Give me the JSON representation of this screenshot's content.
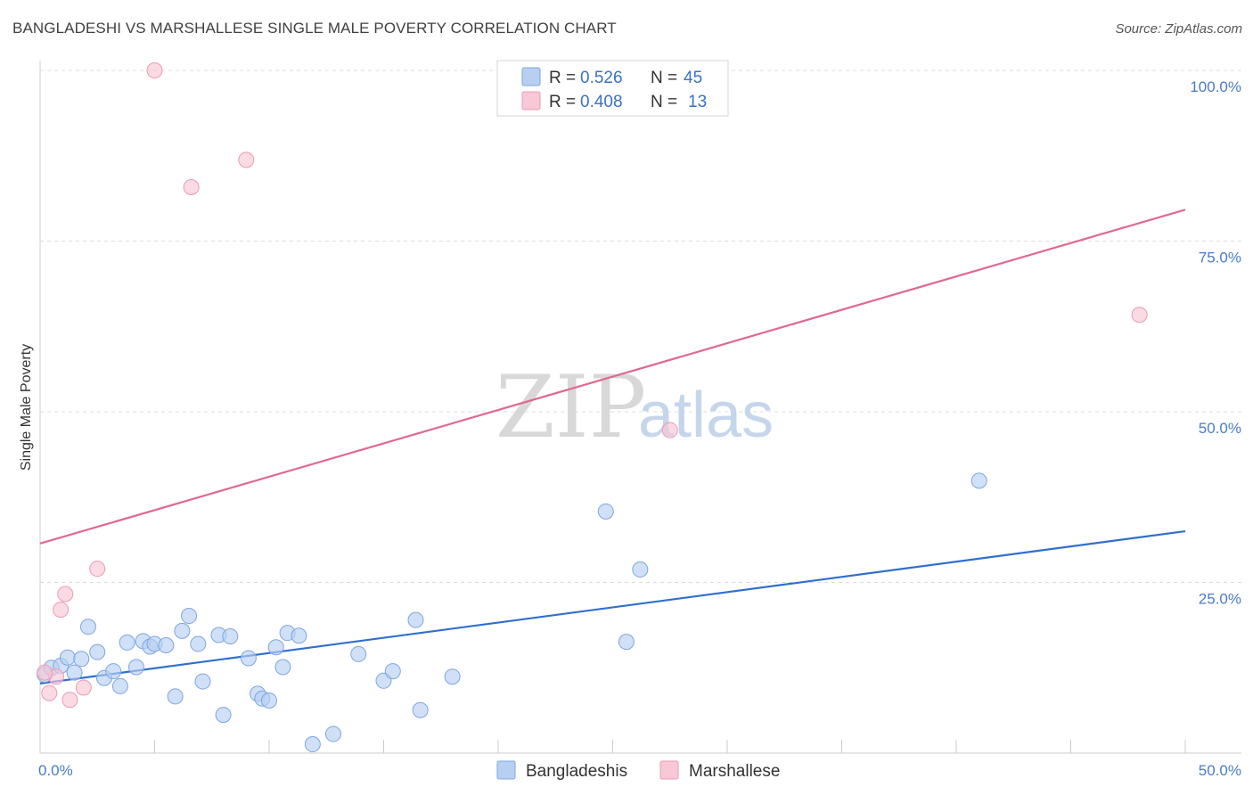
{
  "title": "BANGLADESHI VS MARSHALLESE SINGLE MALE POVERTY CORRELATION CHART",
  "source": "Source: ZipAtlas.com",
  "watermark": {
    "zip": "ZIP",
    "atlas": "atlas"
  },
  "colors": {
    "blue_fill": "#b7d0f2",
    "blue_stroke": "#7ea6df",
    "blue_line": "#2f6fce",
    "pink_fill": "#f8c8d6",
    "pink_stroke": "#ec9ab4",
    "pink_line": "#e06890",
    "grid": "#dcdcdc",
    "axis_text": "#4a7cc4"
  },
  "legend": {
    "r_label": "R =",
    "n_label": "N =",
    "rows": [
      {
        "r": "0.526",
        "n": "45"
      },
      {
        "r": "0.408",
        "n": "13"
      }
    ]
  },
  "chart_data": {
    "type": "scatter",
    "title": "BANGLADESHI VS MARSHALLESE SINGLE MALE POVERTY CORRELATION CHART",
    "xlabel": "",
    "ylabel": "Single Male Poverty",
    "xlim": [
      0,
      50
    ],
    "ylim": [
      0,
      100
    ],
    "x_tick_labels": [
      "0.0%",
      "50.0%"
    ],
    "y_tick_labels": [
      "100.0%",
      "75.0%",
      "50.0%",
      "25.0%"
    ],
    "y_ticks": [
      100,
      75,
      50,
      25
    ],
    "grid": true,
    "legend_position": "top-center",
    "series": [
      {
        "name": "Bangladeshis",
        "color": "#b7d0f2",
        "points": [
          [
            0.2,
            11.5
          ],
          [
            0.5,
            12.5
          ],
          [
            0.9,
            12.8
          ],
          [
            1.2,
            14.0
          ],
          [
            1.5,
            11.8
          ],
          [
            1.8,
            13.8
          ],
          [
            2.1,
            18.5
          ],
          [
            2.5,
            14.8
          ],
          [
            2.8,
            11.0
          ],
          [
            3.2,
            12.0
          ],
          [
            3.5,
            9.8
          ],
          [
            3.8,
            16.2
          ],
          [
            4.2,
            12.6
          ],
          [
            4.5,
            16.4
          ],
          [
            4.8,
            15.6
          ],
          [
            5.0,
            16.0
          ],
          [
            5.5,
            15.8
          ],
          [
            5.9,
            8.3
          ],
          [
            6.2,
            17.9
          ],
          [
            6.5,
            20.1
          ],
          [
            6.9,
            16.0
          ],
          [
            7.1,
            10.5
          ],
          [
            7.8,
            17.3
          ],
          [
            8.0,
            5.6
          ],
          [
            8.3,
            17.1
          ],
          [
            9.1,
            13.9
          ],
          [
            9.5,
            8.7
          ],
          [
            9.7,
            8.0
          ],
          [
            10.0,
            7.7
          ],
          [
            10.3,
            15.5
          ],
          [
            10.6,
            12.6
          ],
          [
            10.8,
            17.6
          ],
          [
            11.3,
            17.2
          ],
          [
            11.9,
            1.3
          ],
          [
            12.8,
            2.8
          ],
          [
            13.9,
            14.5
          ],
          [
            15.0,
            10.6
          ],
          [
            15.4,
            12.0
          ],
          [
            16.4,
            19.5
          ],
          [
            16.6,
            6.3
          ],
          [
            18.0,
            11.2
          ],
          [
            24.7,
            35.4
          ],
          [
            25.6,
            16.3
          ],
          [
            26.2,
            26.9
          ],
          [
            41.0,
            39.9
          ]
        ],
        "trend": {
          "x": [
            0,
            50
          ],
          "y": [
            10.2,
            32.5
          ]
        }
      },
      {
        "name": "Marshallese",
        "color": "#f8c8d6",
        "points": [
          [
            0.4,
            8.8
          ],
          [
            0.7,
            11.2
          ],
          [
            0.9,
            21.0
          ],
          [
            1.1,
            23.3
          ],
          [
            1.3,
            7.8
          ],
          [
            1.9,
            9.6
          ],
          [
            2.5,
            27.0
          ],
          [
            5.0,
            100.0
          ],
          [
            6.6,
            82.9
          ],
          [
            9.0,
            86.9
          ],
          [
            27.5,
            47.3
          ],
          [
            48.0,
            64.2
          ],
          [
            0.2,
            11.8
          ]
        ],
        "trend": {
          "x": [
            0,
            50
          ],
          "y": [
            30.7,
            79.6
          ]
        }
      }
    ]
  }
}
